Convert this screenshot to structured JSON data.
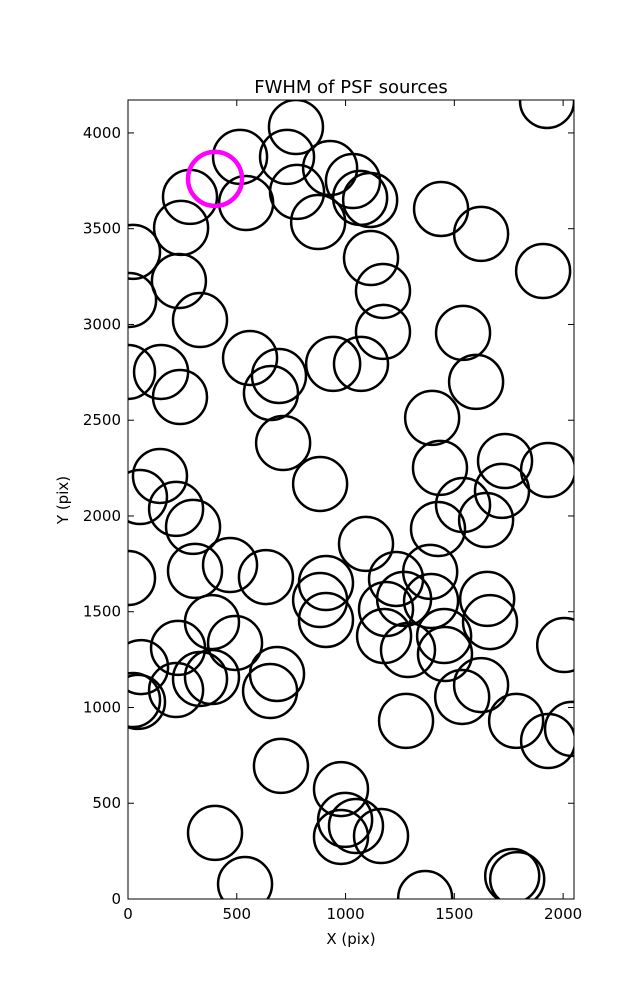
{
  "chart_data": {
    "type": "scatter",
    "title": "FWHM of PSF sources",
    "x_label": "X (pix)",
    "y_label": "Y (pix)",
    "xlim": [
      0,
      2050
    ],
    "ylim": [
      0,
      4172
    ],
    "xticks": [
      0,
      500,
      1000,
      1500,
      2000
    ],
    "yticks": [
      0,
      500,
      1000,
      1500,
      2000,
      2500,
      3000,
      3500,
      4000
    ],
    "series": [
      {
        "color": "#000000",
        "x": [
          515,
          772,
          731,
          777,
          874,
          929,
          1034,
          1067,
          1113,
          543,
          285,
          244,
          23,
          5,
          234,
          331,
          1117,
          1172,
          1172,
          1439,
          1623,
          1908,
          1540,
          1600,
          1398,
          561,
          694,
          657,
          713,
          943,
          1071,
          0,
          152,
          239,
          1434,
          1733,
          1931,
          1719,
          1540,
          1646,
          1425,
          883,
          147,
          55,
          221,
          299,
          308,
          469,
          634,
          0,
          1094,
          910,
          883,
          910,
          1232,
          1389,
          1269,
          1393,
          1186,
          1177,
          1287,
          1453,
          1457,
          1651,
          1664,
          2005,
          386,
          492,
          230,
          60,
          23,
          46,
          221,
          331,
          386,
          685,
          653,
          1623,
          1536,
          1278,
          1784,
          1931,
          2041,
          703,
          979,
          998,
          1048,
          979,
          1163,
          400,
          538,
          1366,
          1766,
          1789,
          1926
        ],
        "y": [
          3875,
          4031,
          3875,
          3692,
          3535,
          3817,
          3749,
          3661,
          3650,
          3634,
          3666,
          3504,
          3379,
          3128,
          3227,
          3023,
          3347,
          3175,
          2961,
          3603,
          3473,
          3279,
          2956,
          2700,
          2512,
          2825,
          2731,
          2642,
          2381,
          2794,
          2794,
          2752,
          2752,
          2621,
          2251,
          2287,
          2240,
          2131,
          2057,
          1979,
          1932,
          2167,
          2209,
          2099,
          2037,
          1943,
          1713,
          1744,
          1681,
          1676,
          1854,
          1650,
          1561,
          1457,
          1671,
          1708,
          1567,
          1556,
          1514,
          1373,
          1300,
          1373,
          1279,
          1567,
          1446,
          1326,
          1446,
          1337,
          1311,
          1211,
          1039,
          1029,
          1091,
          1149,
          1159,
          1175,
          1086,
          1117,
          1055,
          930,
          930,
          825,
          888,
          695,
          574,
          413,
          381,
          324,
          329,
          345,
          78,
          5,
          120,
          104,
          4167
        ]
      },
      {
        "color": "#ff00ff",
        "x": [
          400
        ],
        "y": [
          3760
        ]
      }
    ]
  }
}
